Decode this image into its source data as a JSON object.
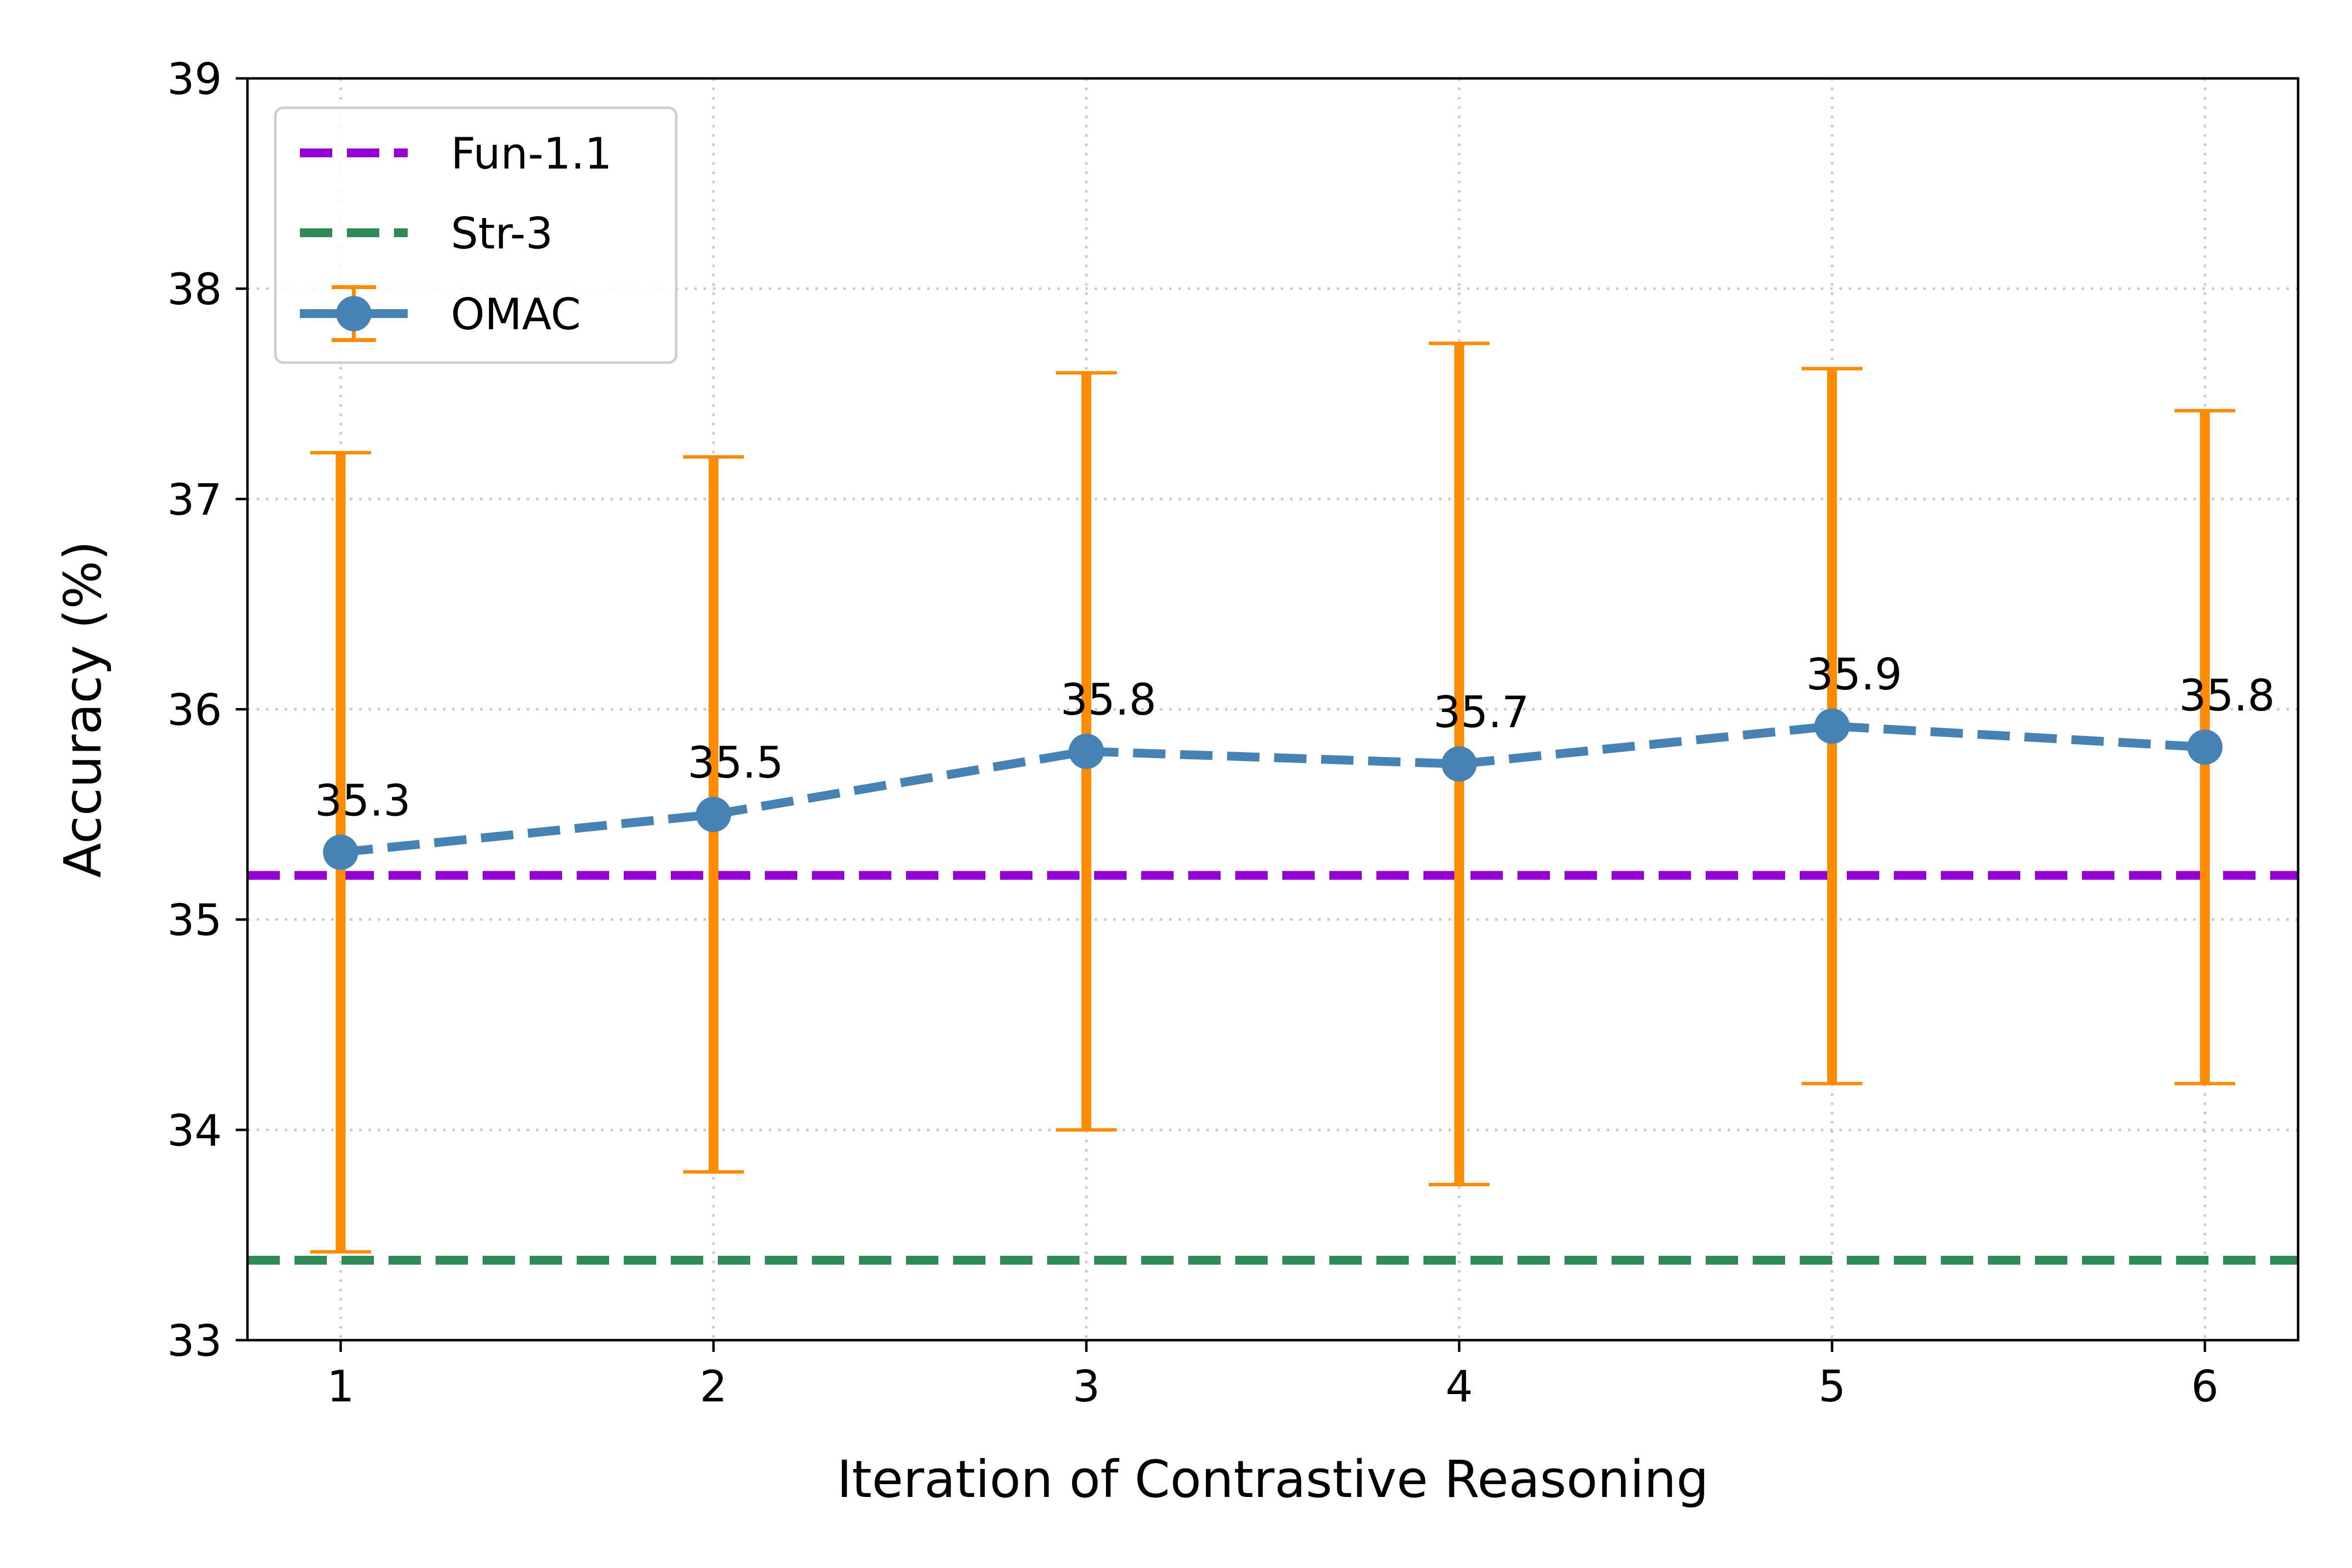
{
  "chart_data": {
    "type": "line",
    "title": "",
    "xlabel": "Iteration of Contrastive Reasoning",
    "ylabel": "Accuracy (%)",
    "x": [
      1,
      2,
      3,
      4,
      5,
      6
    ],
    "xlim": [
      0.75,
      6.25
    ],
    "ylim": [
      33,
      39
    ],
    "xticks": [
      "1",
      "2",
      "3",
      "4",
      "5",
      "6"
    ],
    "yticks": [
      "33",
      "34",
      "35",
      "36",
      "37",
      "38",
      "39"
    ],
    "grid": true,
    "legend_position": "top-left",
    "series": [
      {
        "name": "OMAC",
        "values": [
          35.32,
          35.5,
          35.8,
          35.74,
          35.92,
          35.82
        ],
        "labels": [
          "35.3",
          "35.5",
          "35.8",
          "35.7",
          "35.9",
          "35.8"
        ],
        "error_low": [
          33.42,
          33.8,
          34.0,
          33.74,
          34.22,
          34.22
        ],
        "error_high": [
          37.22,
          37.2,
          37.6,
          37.74,
          37.62,
          37.42
        ],
        "color": "#4682b4",
        "error_color": "#ff8c00",
        "linestyle": "dashed",
        "marker": "circle"
      }
    ],
    "reference_lines": [
      {
        "name": "Fun-1.1",
        "y": 35.21,
        "color": "#9400d3",
        "linestyle": "dashed"
      },
      {
        "name": "Str-3",
        "y": 33.38,
        "color": "#2e8b57",
        "linestyle": "dashed"
      }
    ]
  }
}
